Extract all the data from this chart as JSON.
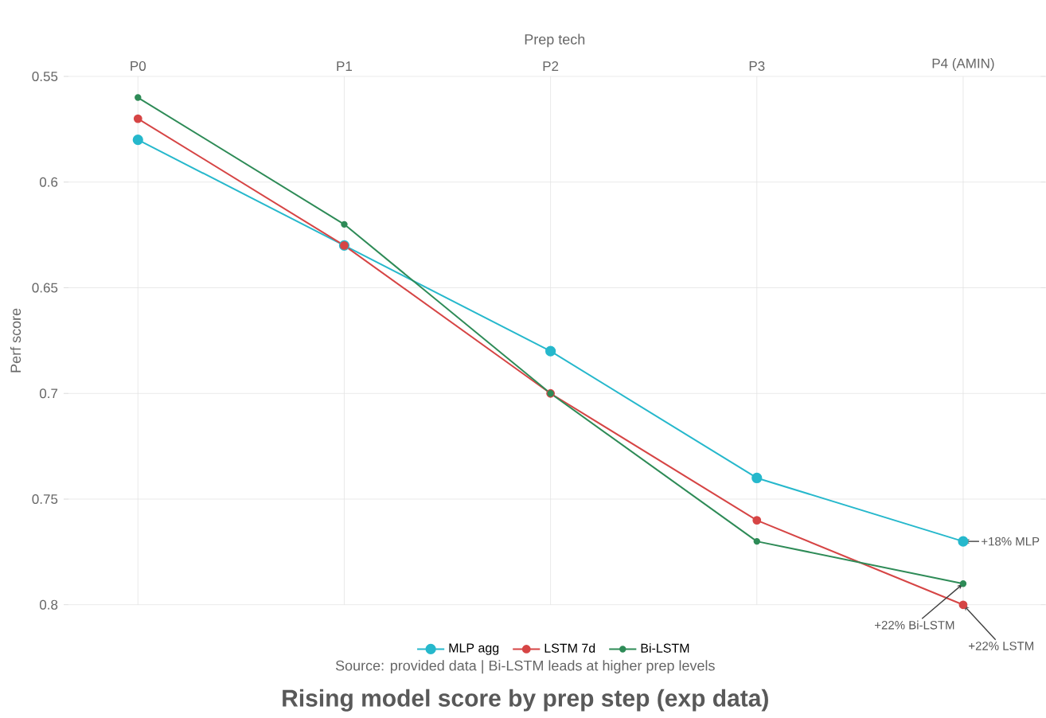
{
  "chart_data": {
    "type": "line",
    "title": "Rising model score by prep step (exp data)",
    "subtitle": "Source: provided data | Bi-LSTM leads at higher prep levels",
    "xlabel": "Prep tech",
    "ylabel": "Perf score",
    "categories": [
      "P0",
      "P1",
      "P2",
      "P3",
      "P4 (AMIN)"
    ],
    "series": [
      {
        "name": "MLP agg",
        "color": "#26b8cc",
        "values": [
          0.58,
          0.63,
          0.68,
          0.74,
          0.77
        ]
      },
      {
        "name": "LSTM 7d",
        "color": "#d64545",
        "values": [
          0.57,
          0.63,
          0.7,
          0.76,
          0.8
        ]
      },
      {
        "name": "Bi-LSTM",
        "color": "#2e8b57",
        "values": [
          0.56,
          0.62,
          0.7,
          0.77,
          0.79
        ]
      }
    ],
    "ylim": [
      0.8,
      0.55
    ],
    "yticks": [
      0.55,
      0.6,
      0.65,
      0.7,
      0.75,
      0.8
    ],
    "grid": true,
    "legend": "bottom",
    "marker": "circle",
    "line_style": "solid",
    "annotations": [
      {
        "text": "+18% MLP",
        "x": "P4 (AMIN)",
        "y": 0.77
      },
      {
        "text": "+22% Bi-LSTM",
        "x": "P4 (AMIN)",
        "y": 0.79
      },
      {
        "text": "+22% LSTM",
        "x": "P4 (AMIN)",
        "y": 0.8
      }
    ]
  }
}
